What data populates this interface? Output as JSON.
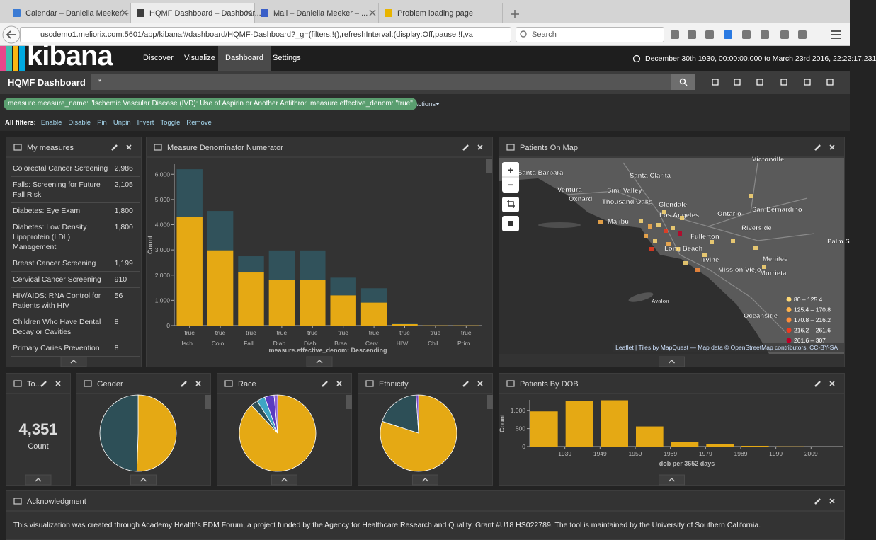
{
  "browser": {
    "tabs": [
      "Calendar – Daniella Meeker – ...",
      "HQMF Dashboard – Dashboar...",
      "Mail – Daniella Meeker – ...",
      "Problem loading page"
    ],
    "url": "uscdemo1.meliorix.com:5601/app/kibana#/dashboard/HQMF-Dashboard?_g=(filters:!(),refreshInterval:(display:Off,pause:!f,va",
    "search_placeholder": "Search"
  },
  "nav": {
    "brand": "kibana",
    "items": [
      "Discover",
      "Visualize",
      "Dashboard",
      "Settings"
    ],
    "time_range": "December 30th 1930, 00:00:00.000 to March 23rd 2016, 22:22:17.231"
  },
  "dashboard": {
    "title": "HQMF Dashboard",
    "query": "*",
    "filters": [
      "measure.measure_name: \"Ischemic Vascular Disease (IVD): Use of Aspirin or Another Antithrombotic\"",
      "measure.effective_denom: \"true\""
    ],
    "filter_menu": "Actions",
    "all_filters_label": "All filters:",
    "all_filters_actions": [
      "Enable",
      "Disable",
      "Pin",
      "Unpin",
      "Invert",
      "Toggle",
      "Remove"
    ]
  },
  "panels": {
    "measures": {
      "title": "My measures",
      "rows": [
        [
          "Colorectal Cancer Screening",
          "2,986"
        ],
        [
          "Falls: Screening for Future Fall Risk",
          "2,105"
        ],
        [
          "Diabetes: Eye Exam",
          "1,800"
        ],
        [
          "Diabetes: Low Density Lipoprotein (LDL) Management",
          "1,800"
        ],
        [
          "Breast Cancer Screening",
          "1,199"
        ],
        [
          "Cervical Cancer Screening",
          "910"
        ],
        [
          "HIV/AIDS: RNA Control for Patients with HIV",
          "56"
        ],
        [
          "Children Who Have Dental Decay or Cavities",
          "8"
        ],
        [
          "Primary Caries Prevention",
          "8"
        ]
      ]
    },
    "denominator": {
      "title": "Measure Denominator Numerator",
      "chart": {
        "type": "bar",
        "stacked": true,
        "categories_top": [
          "true",
          "true",
          "true",
          "true",
          "true",
          "true",
          "true",
          "true",
          "true",
          "true"
        ],
        "categories": [
          "Isch...",
          "Colo...",
          "Fall...",
          "Diab...",
          "Diab...",
          "Brea...",
          "Cerv...",
          "HIV/...",
          "Chil...",
          "Prim..."
        ],
        "series": [
          {
            "color": "#e5a914",
            "values": [
              4300,
              2986,
              2105,
              1800,
              1800,
              1199,
              910,
              56,
              8,
              8
            ]
          },
          {
            "color": "#31525b",
            "values": [
              1900,
              1560,
              645,
              1180,
              1180,
              700,
              570,
              15,
              0,
              0
            ]
          }
        ],
        "x_label": "measure.effective_denom: Descending",
        "y_label": "Count",
        "ylim": [
          0,
          6400
        ],
        "yticks": [
          0,
          {
            "value": 1000,
            "label": "1,000"
          },
          {
            "value": 2000,
            "label": "2,000"
          },
          {
            "value": 3000,
            "label": "3,000"
          },
          {
            "value": 4000,
            "label": "4,000"
          },
          {
            "value": 5000,
            "label": "5,000"
          },
          {
            "value": 6000,
            "label": "6,000"
          }
        ],
        "grid": false
      }
    },
    "map": {
      "title": "Patients On Map",
      "zoom": [
        "+",
        "−"
      ],
      "places": [
        "Victorville",
        "Santa Barbara",
        "Santa Clarita",
        "Ventura",
        "Simi Valley",
        "Oxnard",
        "Thousand Oaks",
        "Glendale",
        "San Bernardino",
        "Los Angeles",
        "Ontario",
        "Malibu",
        "Riverside",
        "Fullerton",
        "Palm S",
        "Long Beach",
        "Menifee",
        "Irvine",
        "Mission Viejo",
        "Murrieta",
        "Avalon",
        "Oceanside"
      ],
      "legend": [
        "80 – 125.4",
        "125.4 – 170.8",
        "170.8 – 216.2",
        "216.2 – 261.6",
        "261.6 – 307"
      ],
      "legend_colors": [
        "#fed976",
        "#feb24c",
        "#fd8d3c",
        "#f03b20",
        "#bd0026"
      ],
      "attribution": "Leaflet | Tiles by MapQuest — Map data © OpenStreetMap contributors, CC-BY-SA"
    },
    "total": {
      "title": "To...",
      "value": "4,351",
      "label": "Count"
    },
    "gender": {
      "title": "Gender",
      "chart": {
        "type": "pie",
        "values": [
          50.5,
          49.5
        ],
        "colors": [
          "#e5a914",
          "#2d4f57"
        ]
      }
    },
    "race": {
      "title": "Race",
      "chart": {
        "type": "pie",
        "values": [
          88,
          3,
          3.5,
          4,
          1.5
        ],
        "colors": [
          "#e5a914",
          "#2d4f57",
          "#3ea6c4",
          "#5a3cbf",
          "#8e5fd6"
        ]
      }
    },
    "ethnicity": {
      "title": "Ethnicity",
      "chart": {
        "type": "pie",
        "values": [
          80,
          19,
          1
        ],
        "colors": [
          "#e5a914",
          "#2d4f57",
          "#7b4ac4"
        ]
      }
    },
    "dob": {
      "title": "Patients By DOB",
      "chart": {
        "type": "histogram",
        "bins": [
          1929,
          1939,
          1949,
          1959,
          1969,
          1979,
          1989,
          1999,
          2009
        ],
        "values": [
          980,
          1270,
          1290,
          560,
          120,
          60,
          20,
          5
        ],
        "color": "#e5a914",
        "x_label": "dob per 3652 days",
        "y_label": "Count",
        "xlim": [
          1929,
          2018
        ],
        "xticks": [
          1939,
          1949,
          1959,
          1969,
          1979,
          1989,
          1999,
          2009
        ],
        "ylim": [
          0,
          1300
        ],
        "yticks": [
          0,
          500,
          {
            "value": 1000,
            "label": "1,000"
          }
        ],
        "grid": false
      }
    },
    "acknowledgment": {
      "title": "Acknowledgment",
      "text": "This visualization was created through Academy Health's EDM Forum, a project funded by the Agency for Healthcare Research and Quality, Grant #U18 HS022789. The tool is maintained by the University of Southern California."
    }
  }
}
